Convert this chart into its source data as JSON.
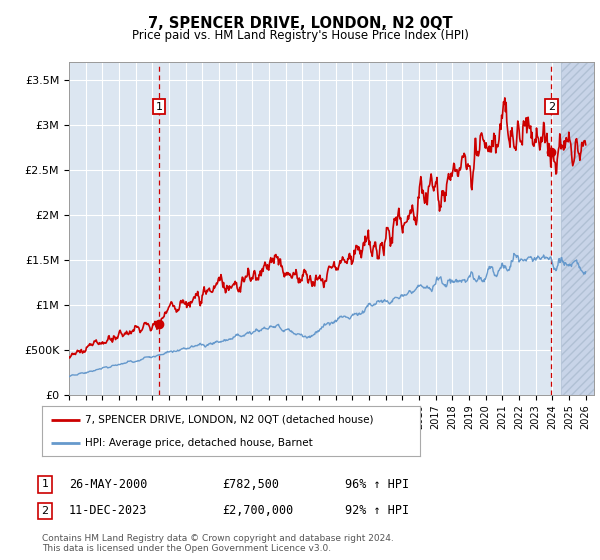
{
  "title": "7, SPENCER DRIVE, LONDON, N2 0QT",
  "subtitle": "Price paid vs. HM Land Registry's House Price Index (HPI)",
  "ylabel_ticks": [
    "£0",
    "£500K",
    "£1M",
    "£1.5M",
    "£2M",
    "£2.5M",
    "£3M",
    "£3.5M"
  ],
  "ytick_values": [
    0,
    500000,
    1000000,
    1500000,
    2000000,
    2500000,
    3000000,
    3500000
  ],
  "ylim": [
    0,
    3700000
  ],
  "xlim_start": 1995.0,
  "xlim_end": 2026.5,
  "red_line_color": "#cc0000",
  "blue_line_color": "#6699cc",
  "background_color": "#dce6f1",
  "grid_color": "#ffffff",
  "annotation1": {
    "label": "1",
    "date_str": "26-MAY-2000",
    "price": "£782,500",
    "hpi": "96% ↑ HPI",
    "x_year": 2000.4,
    "price_val": 782500
  },
  "annotation2": {
    "label": "2",
    "date_str": "11-DEC-2023",
    "price": "£2,700,000",
    "hpi": "92% ↑ HPI",
    "x_year": 2023.95,
    "price_val": 2700000
  },
  "legend_label_red": "7, SPENCER DRIVE, LONDON, N2 0QT (detached house)",
  "legend_label_blue": "HPI: Average price, detached house, Barnet",
  "footer": "Contains HM Land Registry data © Crown copyright and database right 2024.\nThis data is licensed under the Open Government Licence v3.0.",
  "xtick_years": [
    1995,
    1996,
    1997,
    1998,
    1999,
    2000,
    2001,
    2002,
    2003,
    2004,
    2005,
    2006,
    2007,
    2008,
    2009,
    2010,
    2011,
    2012,
    2013,
    2014,
    2015,
    2016,
    2017,
    2018,
    2019,
    2020,
    2021,
    2022,
    2023,
    2024,
    2025,
    2026
  ]
}
